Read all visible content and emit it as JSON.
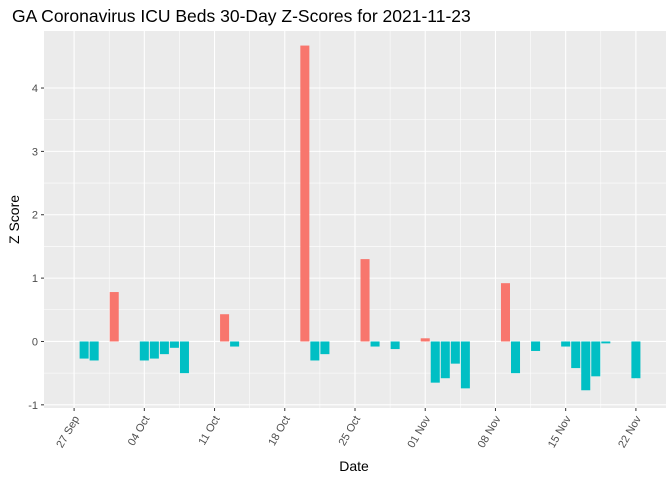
{
  "chart_data": {
    "type": "bar",
    "title": "GA Coronavirus ICU Beds 30-Day Z-Scores for 2021-11-23",
    "xlabel": "Date",
    "ylabel": "Z Score",
    "ylim": [
      -1.05,
      4.9
    ],
    "y_ticks": [
      -1,
      0,
      1,
      2,
      3,
      4
    ],
    "x_ticks": [
      {
        "date": "2021-09-27",
        "label": "27 Sep"
      },
      {
        "date": "2021-10-04",
        "label": "04 Oct"
      },
      {
        "date": "2021-10-11",
        "label": "11 Oct"
      },
      {
        "date": "2021-10-18",
        "label": "18 Oct"
      },
      {
        "date": "2021-10-25",
        "label": "25 Oct"
      },
      {
        "date": "2021-11-01",
        "label": "01 Nov"
      },
      {
        "date": "2021-11-08",
        "label": "08 Nov"
      },
      {
        "date": "2021-11-15",
        "label": "15 Nov"
      },
      {
        "date": "2021-11-22",
        "label": "22 Nov"
      }
    ],
    "xlim": [
      "2021-09-24",
      "2021-11-25"
    ],
    "grid": true,
    "legend": "none",
    "colors": {
      "positive": "#F8766D",
      "negative": "#00BFC4",
      "panel": "#EBEBEB",
      "grid": "#FFFFFF"
    },
    "points": [
      {
        "date": "2021-09-28",
        "value": -0.27
      },
      {
        "date": "2021-09-29",
        "value": -0.3
      },
      {
        "date": "2021-10-01",
        "value": 0.78
      },
      {
        "date": "2021-10-04",
        "value": -0.3
      },
      {
        "date": "2021-10-05",
        "value": -0.27
      },
      {
        "date": "2021-10-06",
        "value": -0.2
      },
      {
        "date": "2021-10-07",
        "value": -0.1
      },
      {
        "date": "2021-10-08",
        "value": -0.5
      },
      {
        "date": "2021-10-12",
        "value": 0.43
      },
      {
        "date": "2021-10-13",
        "value": -0.08
      },
      {
        "date": "2021-10-20",
        "value": 4.67
      },
      {
        "date": "2021-10-21",
        "value": -0.3
      },
      {
        "date": "2021-10-22",
        "value": -0.2
      },
      {
        "date": "2021-10-26",
        "value": 1.3
      },
      {
        "date": "2021-10-27",
        "value": -0.08
      },
      {
        "date": "2021-10-29",
        "value": -0.12
      },
      {
        "date": "2021-11-01",
        "value": 0.05
      },
      {
        "date": "2021-11-02",
        "value": -0.65
      },
      {
        "date": "2021-11-03",
        "value": -0.58
      },
      {
        "date": "2021-11-04",
        "value": -0.35
      },
      {
        "date": "2021-11-05",
        "value": -0.74
      },
      {
        "date": "2021-11-09",
        "value": 0.92
      },
      {
        "date": "2021-11-10",
        "value": -0.5
      },
      {
        "date": "2021-11-12",
        "value": -0.15
      },
      {
        "date": "2021-11-15",
        "value": -0.08
      },
      {
        "date": "2021-11-16",
        "value": -0.42
      },
      {
        "date": "2021-11-17",
        "value": -0.77
      },
      {
        "date": "2021-11-18",
        "value": -0.55
      },
      {
        "date": "2021-11-19",
        "value": -0.03
      },
      {
        "date": "2021-11-22",
        "value": -0.58
      }
    ]
  }
}
